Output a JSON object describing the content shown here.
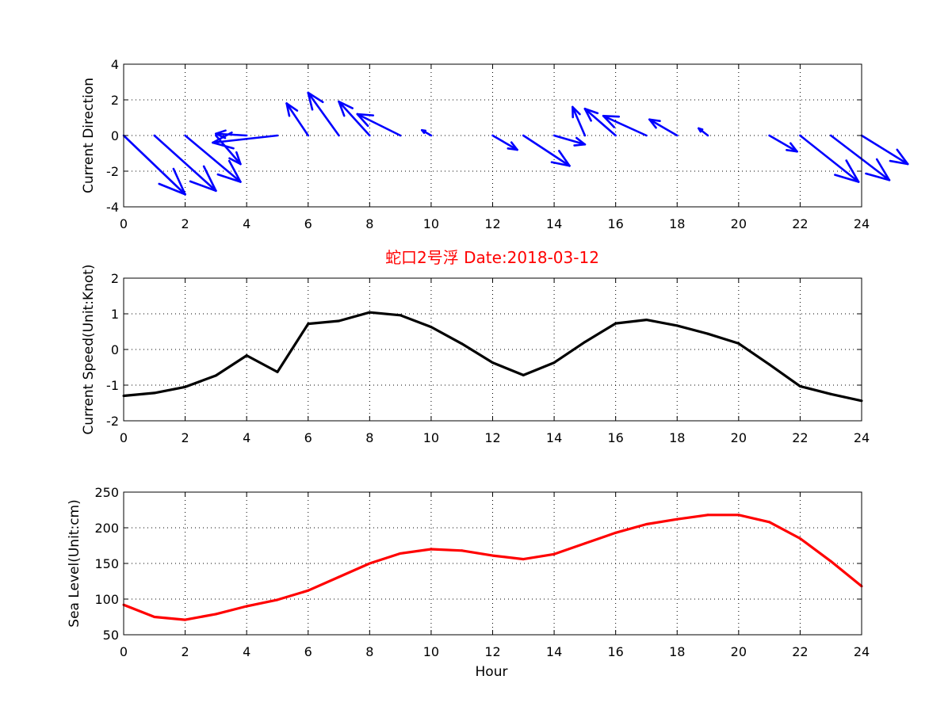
{
  "colors": {
    "quiver": "#0000ff",
    "speed": "#000000",
    "sea_level": "#ff0000",
    "title": "#ff0000"
  },
  "chart_data": [
    {
      "type": "quiver",
      "ylabel": "Current Direction",
      "xlabel": "",
      "xlim": [
        0,
        24
      ],
      "ylim": [
        -4,
        4
      ],
      "xticks": [
        0,
        2,
        4,
        6,
        8,
        10,
        12,
        14,
        16,
        18,
        20,
        22,
        24
      ],
      "yticks": [
        -4,
        -2,
        0,
        2,
        4
      ],
      "grid": true,
      "arrows": [
        {
          "x": 0,
          "u": 2.0,
          "v": -3.3
        },
        {
          "x": 1,
          "u": 2.0,
          "v": -3.1
        },
        {
          "x": 2,
          "u": 1.8,
          "v": -2.6
        },
        {
          "x": 3,
          "u": 0.8,
          "v": -1.6
        },
        {
          "x": 4,
          "u": -1.0,
          "v": 0.1
        },
        {
          "x": 5,
          "u": -2.1,
          "v": -0.4
        },
        {
          "x": 6,
          "u": -0.7,
          "v": 1.8
        },
        {
          "x": 7,
          "u": -1.0,
          "v": 2.4
        },
        {
          "x": 8,
          "u": -1.0,
          "v": 1.9
        },
        {
          "x": 9,
          "u": -1.4,
          "v": 1.2
        },
        {
          "x": 10,
          "u": -0.3,
          "v": 0.3
        },
        {
          "x": 11,
          "u": 0.0,
          "v": 0.0
        },
        {
          "x": 12,
          "u": 0.8,
          "v": -0.8
        },
        {
          "x": 13,
          "u": 1.5,
          "v": -1.7
        },
        {
          "x": 14,
          "u": 1.0,
          "v": -0.5
        },
        {
          "x": 15,
          "u": -0.4,
          "v": 1.6
        },
        {
          "x": 16,
          "u": -1.0,
          "v": 1.5
        },
        {
          "x": 17,
          "u": -1.4,
          "v": 1.1
        },
        {
          "x": 18,
          "u": -0.9,
          "v": 0.9
        },
        {
          "x": 19,
          "u": -0.3,
          "v": 0.4
        },
        {
          "x": 20,
          "u": 0.0,
          "v": 0.0
        },
        {
          "x": 21,
          "u": 0.9,
          "v": -0.9
        },
        {
          "x": 22,
          "u": 1.9,
          "v": -2.6
        },
        {
          "x": 23,
          "u": 1.9,
          "v": -2.5
        },
        {
          "x": 24,
          "u": 1.5,
          "v": -1.6
        }
      ]
    },
    {
      "type": "line",
      "title": "蛇口2号浮    Date:2018-03-12",
      "ylabel": "Current Speed(Unit:Knot)",
      "xlabel": "",
      "xlim": [
        0,
        24
      ],
      "ylim": [
        -2,
        2
      ],
      "xticks": [
        0,
        2,
        4,
        6,
        8,
        10,
        12,
        14,
        16,
        18,
        20,
        22,
        24
      ],
      "yticks": [
        -2,
        -1,
        0,
        1,
        2
      ],
      "grid": true,
      "x": [
        0,
        1,
        2,
        3,
        4,
        5,
        6,
        7,
        8,
        9,
        10,
        11,
        12,
        13,
        14,
        15,
        16,
        17,
        18,
        19,
        20,
        21,
        22,
        23,
        24
      ],
      "values": [
        -1.3,
        -1.22,
        -1.05,
        -0.73,
        -0.17,
        -0.63,
        0.72,
        0.8,
        1.04,
        0.96,
        0.63,
        0.16,
        -0.37,
        -0.72,
        -0.37,
        0.21,
        0.73,
        0.83,
        0.67,
        0.44,
        0.17,
        -0.42,
        -1.03,
        -1.25,
        -1.44
      ]
    },
    {
      "type": "line",
      "ylabel": "Sea Level(Unit:cm)",
      "xlabel": "Hour",
      "xlim": [
        0,
        24
      ],
      "ylim": [
        50,
        250
      ],
      "xticks": [
        0,
        2,
        4,
        6,
        8,
        10,
        12,
        14,
        16,
        18,
        20,
        22,
        24
      ],
      "yticks": [
        50,
        100,
        150,
        200,
        250
      ],
      "grid": true,
      "x": [
        0,
        1,
        2,
        3,
        4,
        5,
        6,
        7,
        8,
        9,
        10,
        11,
        12,
        13,
        14,
        15,
        16,
        17,
        18,
        19,
        20,
        21,
        22,
        23,
        24
      ],
      "values": [
        92,
        75,
        71,
        79,
        90,
        99,
        112,
        131,
        150,
        164,
        170,
        168,
        161,
        156,
        163,
        178,
        193,
        205,
        212,
        218,
        218,
        208,
        185,
        153,
        118
      ]
    }
  ]
}
